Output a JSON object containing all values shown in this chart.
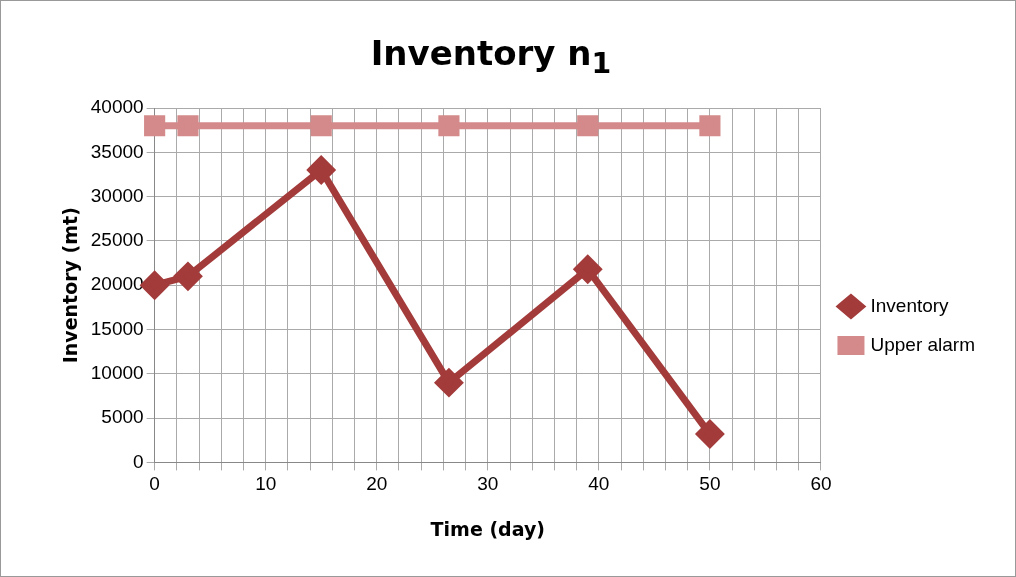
{
  "chart_data": {
    "type": "line",
    "title": "Inventory n$_{1}$",
    "xlabel": "Time (day)",
    "ylabel": "Inventory (mt)",
    "x": [
      0,
      3,
      15,
      26.5,
      39,
      50
    ],
    "series": [
      {
        "name": "Inventory",
        "color": "#a33b3b",
        "values": [
          20000,
          21000,
          33000,
          9000,
          21800,
          3200
        ],
        "marker": "diamond"
      },
      {
        "name": "Upper alarm",
        "color": "#d48a8a",
        "values": [
          38000,
          38000,
          38000,
          38000,
          38000,
          38000
        ],
        "marker": "square"
      }
    ],
    "xlim": [
      0,
      60
    ],
    "xticks": [
      0,
      {
        "value": 2,
        "label": null
      },
      {
        "value": 4,
        "label": null
      },
      {
        "value": 6,
        "label": null
      },
      {
        "value": 8,
        "label": null
      },
      10,
      {
        "value": 12,
        "label": null
      },
      {
        "value": 14,
        "label": null
      },
      {
        "value": 16,
        "label": null
      },
      {
        "value": 18,
        "label": null
      },
      20,
      {
        "value": 22,
        "label": null
      },
      {
        "value": 24,
        "label": null
      },
      {
        "value": 26,
        "label": null
      },
      {
        "value": 28,
        "label": null
      },
      30,
      {
        "value": 32,
        "label": null
      },
      {
        "value": 34,
        "label": null
      },
      {
        "value": 36,
        "label": null
      },
      {
        "value": 38,
        "label": null
      },
      40,
      {
        "value": 42,
        "label": null
      },
      {
        "value": 44,
        "label": null
      },
      {
        "value": 46,
        "label": null
      },
      {
        "value": 48,
        "label": null
      },
      50,
      {
        "value": 52,
        "label": null
      },
      {
        "value": 54,
        "label": null
      },
      {
        "value": 56,
        "label": null
      },
      {
        "value": 58,
        "label": null
      },
      60
    ],
    "ylim": [
      0,
      40000
    ],
    "yticks": [
      0,
      5000,
      10000,
      15000,
      20000,
      25000,
      30000,
      35000,
      40000
    ],
    "grid": true,
    "legend": "right",
    "line_style": "solid"
  }
}
